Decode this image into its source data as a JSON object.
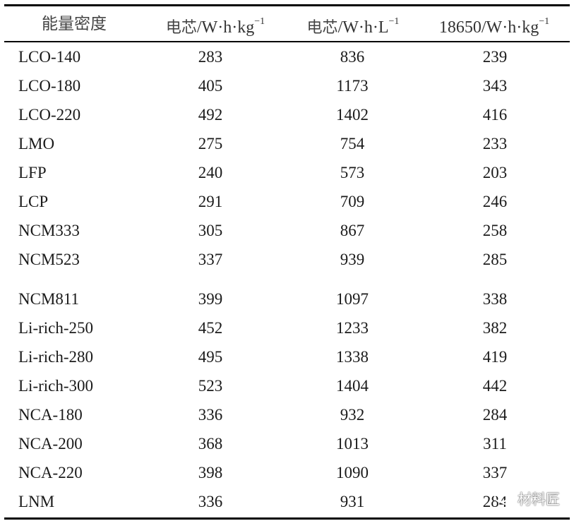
{
  "table": {
    "headers": [
      {
        "main": "能量密度",
        "sup": ""
      },
      {
        "cjk": "电芯",
        "main": "/W·h·kg",
        "sup": "−1"
      },
      {
        "cjk": "电芯",
        "main": "/W·h·L",
        "sup": "−1"
      },
      {
        "cjk": "",
        "main": "18650/W·h·kg",
        "sup": "−1"
      }
    ],
    "rows": [
      [
        "LCO-140",
        "283",
        "836",
        "239"
      ],
      [
        "LCO-180",
        "405",
        "1173",
        "343"
      ],
      [
        "LCO-220",
        "492",
        "1402",
        "416"
      ],
      [
        "LMO",
        "275",
        "754",
        "233"
      ],
      [
        "LFP",
        "240",
        "573",
        "203"
      ],
      [
        "LCP",
        "291",
        "709",
        "246"
      ],
      [
        "NCM333",
        "305",
        "867",
        "258"
      ],
      [
        "NCM523",
        "337",
        "939",
        "285"
      ],
      [
        "NCM811",
        "399",
        "1097",
        "338"
      ],
      [
        "Li-rich-250",
        "452",
        "1233",
        "382"
      ],
      [
        "Li-rich-280",
        "495",
        "1338",
        "419"
      ],
      [
        "Li-rich-300",
        "523",
        "1404",
        "442"
      ],
      [
        "NCA-180",
        "336",
        "932",
        "284"
      ],
      [
        "NCA-200",
        "368",
        "1013",
        "311"
      ],
      [
        "NCA-220",
        "398",
        "1090",
        "337"
      ],
      [
        "LNM",
        "336",
        "931",
        "284"
      ]
    ]
  },
  "watermark": {
    "text": "材料匠",
    "icon": "wechat-icon"
  }
}
